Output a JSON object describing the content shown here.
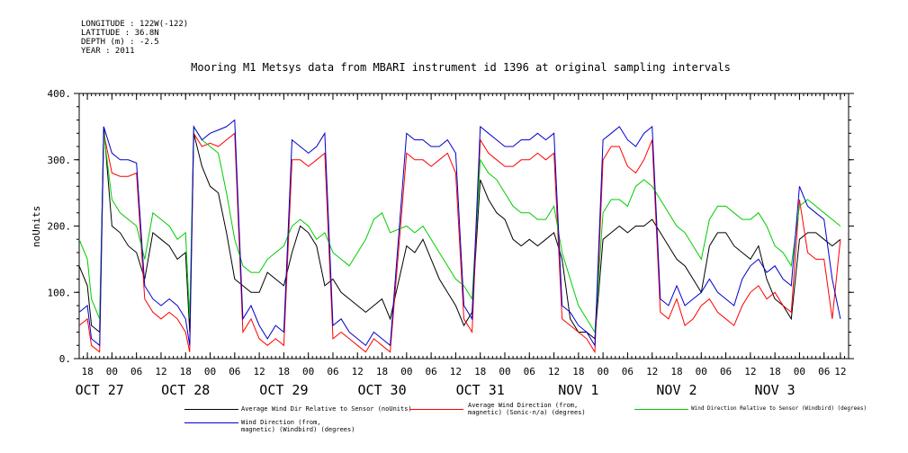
{
  "metadata_lines": [
    "LONGITUDE : 122W(-122)",
    "LATITUDE : 36.8N",
    "DEPTH (m) : -2.5",
    "YEAR : 2011"
  ],
  "chart_data": {
    "type": "line",
    "title": "Mooring M1 Metsys data from MBARI instrument id 1396 at original sampling intervals",
    "ylabel": "noUnits",
    "xlabel": "",
    "ylim": [
      0,
      400
    ],
    "yticks": [
      0,
      100,
      200,
      300,
      400
    ],
    "ytick_labels": [
      "0.",
      "100.",
      "200.",
      "300.",
      "400."
    ],
    "xlim_hours": [
      -8,
      180
    ],
    "hour_ticks": [
      {
        "h": -6,
        "label": "18"
      },
      {
        "h": 0,
        "label": "00"
      },
      {
        "h": 6,
        "label": "06"
      },
      {
        "h": 12,
        "label": "12"
      },
      {
        "h": 18,
        "label": "18"
      },
      {
        "h": 24,
        "label": "00"
      },
      {
        "h": 30,
        "label": "06"
      },
      {
        "h": 36,
        "label": "12"
      },
      {
        "h": 42,
        "label": "18"
      },
      {
        "h": 48,
        "label": "00"
      },
      {
        "h": 54,
        "label": "06"
      },
      {
        "h": 60,
        "label": "12"
      },
      {
        "h": 66,
        "label": "18"
      },
      {
        "h": 72,
        "label": "00"
      },
      {
        "h": 78,
        "label": "06"
      },
      {
        "h": 84,
        "label": "12"
      },
      {
        "h": 90,
        "label": "18"
      },
      {
        "h": 96,
        "label": "00"
      },
      {
        "h": 102,
        "label": "06"
      },
      {
        "h": 108,
        "label": "12"
      },
      {
        "h": 114,
        "label": "18"
      },
      {
        "h": 120,
        "label": "00"
      },
      {
        "h": 126,
        "label": "06"
      },
      {
        "h": 132,
        "label": "12"
      },
      {
        "h": 138,
        "label": "18"
      },
      {
        "h": 144,
        "label": "00"
      },
      {
        "h": 150,
        "label": "06"
      },
      {
        "h": 156,
        "label": "12"
      },
      {
        "h": 162,
        "label": "18"
      },
      {
        "h": 168,
        "label": "00"
      },
      {
        "h": 174,
        "label": "06"
      },
      {
        "h": 178,
        "label": "12"
      }
    ],
    "date_labels": [
      {
        "h": -3,
        "label": "OCT 27"
      },
      {
        "h": 18,
        "label": "OCT 28"
      },
      {
        "h": 42,
        "label": "OCT 29"
      },
      {
        "h": 66,
        "label": "OCT 30"
      },
      {
        "h": 90,
        "label": "OCT 31"
      },
      {
        "h": 114,
        "label": "NOV  1"
      },
      {
        "h": 138,
        "label": "NOV  2"
      },
      {
        "h": 162,
        "label": "NOV  3"
      }
    ],
    "x_units": "hours from 2011-10-27 00:00",
    "grid": false,
    "legend_position": "bottom",
    "series": [
      {
        "name": "Average Wind Dir Relative to Sensor (noUnits)",
        "color": "#000000",
        "x": [
          -8,
          -6,
          -5,
          -3,
          -2,
          0,
          2,
          4,
          6,
          8,
          10,
          12,
          14,
          16,
          18,
          19,
          20,
          22,
          24,
          26,
          28,
          30,
          32,
          34,
          36,
          38,
          40,
          42,
          44,
          46,
          48,
          50,
          52,
          54,
          56,
          58,
          60,
          62,
          64,
          66,
          68,
          72,
          74,
          76,
          78,
          80,
          82,
          84,
          86,
          88,
          90,
          92,
          94,
          96,
          98,
          100,
          102,
          104,
          106,
          108,
          110,
          112,
          114,
          116,
          118,
          120,
          122,
          124,
          126,
          128,
          130,
          132,
          134,
          136,
          138,
          140,
          142,
          144,
          146,
          148,
          150,
          152,
          154,
          156,
          158,
          160,
          162,
          164,
          166,
          168,
          170,
          172,
          174,
          176,
          178
        ],
        "values": [
          140,
          110,
          50,
          40,
          350,
          200,
          190,
          170,
          160,
          120,
          190,
          180,
          170,
          150,
          160,
          40,
          340,
          290,
          260,
          250,
          190,
          120,
          110,
          100,
          100,
          130,
          120,
          110,
          160,
          200,
          190,
          170,
          110,
          120,
          100,
          90,
          80,
          70,
          80,
          90,
          60,
          170,
          160,
          180,
          150,
          120,
          100,
          80,
          50,
          70,
          270,
          240,
          220,
          210,
          180,
          170,
          180,
          170,
          180,
          190,
          150,
          60,
          40,
          40,
          30,
          180,
          190,
          200,
          190,
          200,
          200,
          210,
          190,
          170,
          150,
          140,
          120,
          100,
          170,
          190,
          190,
          170,
          160,
          150,
          170,
          120,
          90,
          80,
          60,
          180,
          190,
          190,
          180,
          170,
          180
        ]
      },
      {
        "name": "Average Wind Direction (from, magnetic) (Sonic-n/a) (degrees)",
        "color": "#ff0000",
        "x": [
          -8,
          -6,
          -5,
          -3,
          -2,
          0,
          2,
          4,
          6,
          8,
          10,
          12,
          14,
          16,
          18,
          19,
          20,
          22,
          24,
          26,
          28,
          30,
          32,
          34,
          36,
          38,
          40,
          42,
          44,
          46,
          48,
          50,
          52,
          54,
          56,
          58,
          60,
          62,
          64,
          66,
          68,
          72,
          74,
          76,
          78,
          80,
          82,
          84,
          86,
          88,
          90,
          92,
          94,
          96,
          98,
          100,
          102,
          104,
          106,
          108,
          110,
          112,
          114,
          116,
          118,
          120,
          122,
          124,
          126,
          128,
          130,
          132,
          134,
          136,
          138,
          140,
          142,
          144,
          146,
          148,
          150,
          152,
          154,
          156,
          158,
          160,
          162,
          164,
          166,
          168,
          170,
          172,
          174,
          176,
          178
        ],
        "values": [
          50,
          60,
          20,
          10,
          340,
          280,
          275,
          275,
          280,
          90,
          70,
          60,
          70,
          60,
          40,
          10,
          340,
          320,
          325,
          320,
          330,
          340,
          40,
          60,
          30,
          20,
          30,
          20,
          300,
          300,
          290,
          300,
          310,
          30,
          40,
          30,
          20,
          10,
          30,
          20,
          10,
          310,
          300,
          300,
          290,
          300,
          310,
          280,
          60,
          40,
          330,
          310,
          300,
          290,
          290,
          300,
          300,
          310,
          300,
          310,
          60,
          50,
          40,
          30,
          10,
          300,
          320,
          320,
          290,
          280,
          300,
          330,
          70,
          60,
          90,
          50,
          60,
          80,
          90,
          70,
          60,
          50,
          80,
          100,
          110,
          90,
          100,
          80,
          70,
          240,
          160,
          150,
          150,
          60,
          180
        ]
      },
      {
        "name": "Wind Direction Relative to Sensor (Windbird) (degrees)",
        "color": "#00cc00",
        "x": [
          -8,
          -6,
          -5,
          -3,
          -2,
          0,
          2,
          4,
          6,
          8,
          10,
          12,
          14,
          16,
          18,
          19,
          20,
          22,
          24,
          26,
          28,
          30,
          32,
          34,
          36,
          38,
          40,
          42,
          44,
          46,
          48,
          50,
          52,
          54,
          56,
          58,
          60,
          62,
          64,
          66,
          68,
          72,
          74,
          76,
          78,
          80,
          82,
          84,
          86,
          88,
          90,
          92,
          94,
          96,
          98,
          100,
          102,
          104,
          106,
          108,
          110,
          112,
          114,
          116,
          118,
          120,
          122,
          124,
          126,
          128,
          130,
          132,
          134,
          136,
          138,
          140,
          142,
          144,
          146,
          148,
          150,
          152,
          154,
          156,
          158,
          160,
          162,
          164,
          166,
          168,
          170,
          172,
          174,
          176,
          178
        ],
        "values": [
          180,
          150,
          90,
          60,
          340,
          240,
          220,
          210,
          200,
          150,
          220,
          210,
          200,
          180,
          190,
          60,
          350,
          330,
          320,
          310,
          250,
          180,
          140,
          130,
          130,
          150,
          160,
          170,
          200,
          210,
          200,
          180,
          190,
          160,
          150,
          140,
          160,
          180,
          210,
          220,
          190,
          200,
          190,
          200,
          180,
          160,
          140,
          120,
          110,
          90,
          300,
          280,
          270,
          250,
          230,
          220,
          220,
          210,
          210,
          230,
          160,
          120,
          80,
          60,
          40,
          220,
          240,
          240,
          230,
          260,
          270,
          260,
          240,
          220,
          200,
          190,
          170,
          150,
          210,
          230,
          230,
          220,
          210,
          210,
          220,
          200,
          170,
          160,
          140,
          230,
          240,
          230,
          220,
          210,
          200
        ]
      },
      {
        "name": "Wind Direction (from, magnetic) (Windbird) (degrees)",
        "color": "#0000cc",
        "x": [
          -8,
          -6,
          -5,
          -3,
          -2,
          0,
          2,
          4,
          6,
          8,
          10,
          12,
          14,
          16,
          18,
          19,
          20,
          22,
          24,
          26,
          28,
          30,
          32,
          34,
          36,
          38,
          40,
          42,
          44,
          46,
          48,
          50,
          52,
          54,
          56,
          58,
          60,
          62,
          64,
          66,
          68,
          72,
          74,
          76,
          78,
          80,
          82,
          84,
          86,
          88,
          90,
          92,
          94,
          96,
          98,
          100,
          102,
          104,
          106,
          108,
          110,
          112,
          114,
          116,
          118,
          120,
          122,
          124,
          126,
          128,
          130,
          132,
          134,
          136,
          138,
          140,
          142,
          144,
          146,
          148,
          150,
          152,
          154,
          156,
          158,
          160,
          162,
          164,
          166,
          168,
          170,
          172,
          174,
          176,
          178
        ],
        "values": [
          70,
          80,
          30,
          20,
          350,
          310,
          300,
          300,
          295,
          110,
          90,
          80,
          90,
          80,
          60,
          20,
          350,
          330,
          340,
          345,
          350,
          360,
          60,
          80,
          50,
          30,
          50,
          40,
          330,
          320,
          310,
          320,
          340,
          50,
          60,
          40,
          30,
          20,
          40,
          30,
          20,
          340,
          330,
          330,
          320,
          320,
          330,
          310,
          80,
          60,
          350,
          340,
          330,
          320,
          320,
          330,
          330,
          340,
          330,
          340,
          80,
          70,
          50,
          40,
          20,
          330,
          340,
          350,
          330,
          320,
          340,
          350,
          90,
          80,
          110,
          80,
          90,
          100,
          120,
          100,
          90,
          80,
          120,
          140,
          150,
          130,
          140,
          120,
          110,
          260,
          230,
          220,
          210,
          120,
          60
        ]
      }
    ],
    "legend_entries": [
      {
        "label": "Average Wind Dir Relative to Sensor (noUnits)"
      },
      {
        "label": "Average Wind Direction (from,\nmagnetic) (Sonic-n/a) (degrees)"
      },
      {
        "label": "Wind Direction Relative to Sensor (Windbird) (degrees)"
      },
      {
        "label": "Wind Direction (from,\nmagnetic) (Windbird) (degrees)"
      }
    ]
  }
}
